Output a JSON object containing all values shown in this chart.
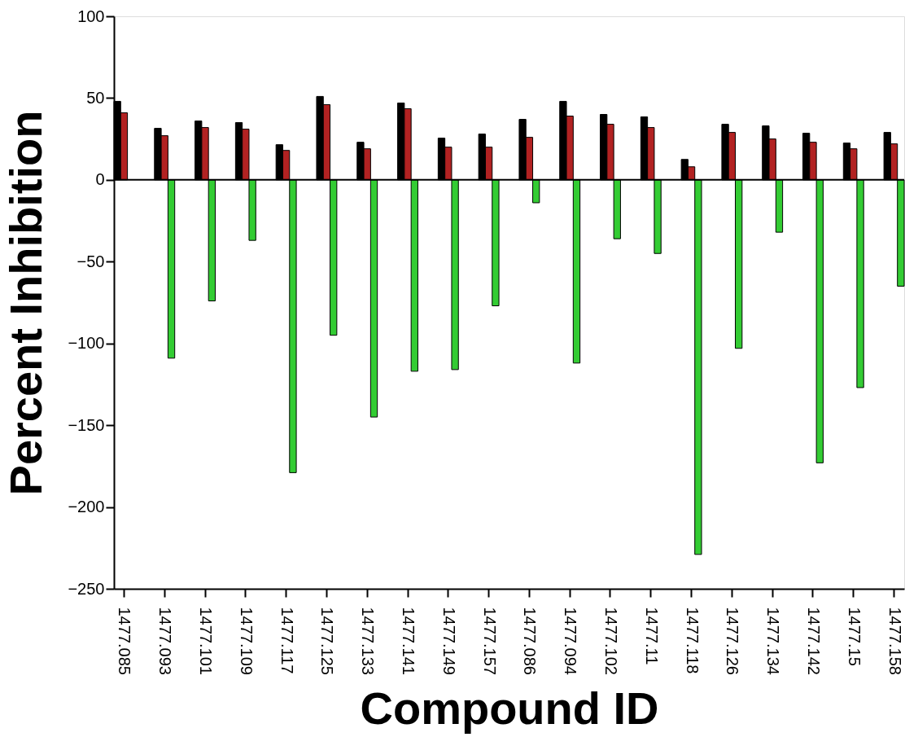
{
  "chart_data": {
    "type": "bar",
    "xlabel": "Compound ID",
    "ylabel": "Percent Inhibition",
    "categories": [
      "1477.085",
      "1477.093",
      "1477.101",
      "1477.109",
      "1477.117",
      "1477.125",
      "1477.133",
      "1477.141",
      "1477.149",
      "1477.157",
      "1477.086",
      "1477.094",
      "1477.102",
      "1477.11",
      "1477.118",
      "1477.126",
      "1477.134",
      "1477.142",
      "1477.15",
      "1477.158"
    ],
    "series": [
      {
        "color": "#000000",
        "values": [
          48,
          31.5,
          36,
          35,
          21.5,
          51,
          23,
          47,
          25.5,
          28,
          37,
          48,
          40,
          38.5,
          12.5,
          34,
          33,
          28.5,
          22.5,
          29
        ]
      },
      {
        "color": "#b22222",
        "values": [
          41,
          27,
          32,
          31,
          18,
          46,
          19,
          43.5,
          20,
          20,
          26,
          39,
          34,
          32,
          8,
          29,
          25,
          23,
          19,
          22
        ]
      },
      {
        "color": "#33cc33",
        "values": [
          null,
          -109,
          -74,
          -37,
          -179,
          -95,
          -145,
          -117,
          -116,
          -77,
          -14,
          -112,
          -36,
          -45,
          -229,
          -103,
          -32,
          -173,
          -127,
          -65
        ]
      }
    ],
    "ylim": [
      -250,
      100
    ],
    "yticks": [
      -250,
      -200,
      -150,
      -100,
      -50,
      0,
      50,
      100
    ],
    "ref_lines": [
      {
        "axis": "y",
        "value": 0,
        "color": "#000000"
      }
    ],
    "grid": false,
    "legend": false
  }
}
